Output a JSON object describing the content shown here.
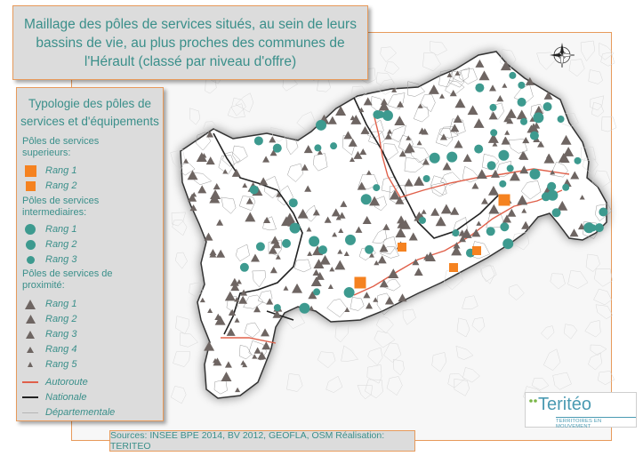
{
  "title": "Maillage des pôles de services situés, au sein de leurs bassins de vie, au plus proches des communes de l'Hérault (classé par niveau d'offre)",
  "legend": {
    "title": "Typologie des pôles de services et d'équipements",
    "superieurs": {
      "heading": "Pôles de services superieurs:",
      "items": [
        "Rang 1",
        "Rang 2"
      ]
    },
    "intermediaires": {
      "heading": "Pôles de services intermediaires:",
      "items": [
        "Rang 1",
        "Rang 2",
        "Rang 3"
      ]
    },
    "proximite": {
      "heading": "Pôles de services de proximité:",
      "items": [
        "Rang 1",
        "Rang 2",
        "Rang 3",
        "Rang 4",
        "Rang 5"
      ]
    },
    "roads": [
      "Autoroute",
      "Nationale",
      "Départementale"
    ]
  },
  "sources": "Sources: INSEE BPE 2014, BV 2012, GEOFLA, OSM  Réalisation: TERITEO",
  "logo": {
    "name": "Teritéo",
    "tagline": "TERRITOIRES EN MOUVEMENT"
  },
  "colors": {
    "orange": "#f58220",
    "teal": "#3d9a8f",
    "triangle": "#6e6562",
    "autoroute": "#e0604a",
    "nationale": "#222222",
    "frame": "#e79a5b",
    "text": "#3a8f8a"
  },
  "compass": "north-arrow-icon",
  "poles": {
    "superieurs": 5,
    "intermediaires": 60,
    "proximite": 250
  }
}
